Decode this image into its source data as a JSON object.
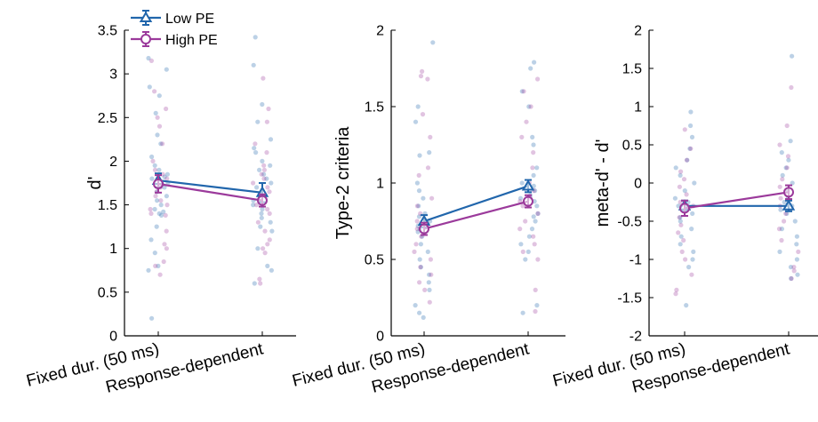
{
  "chart_data": [
    {
      "type": "line",
      "panel": "d-prime",
      "ylabel": "d'",
      "ylim": [
        0,
        3.5
      ],
      "yticks": [
        0,
        0.5,
        1,
        1.5,
        2,
        2.5,
        3,
        3.5
      ],
      "ytick_labels": [
        "0",
        "0.5",
        "1",
        "1.5",
        "2",
        "2.5",
        "3",
        "3.5"
      ],
      "categories": [
        "Fixed dur. (50 ms)",
        "Response-dependent"
      ],
      "legend": {
        "position": "top-left",
        "entries": [
          "Low PE",
          "High PE"
        ]
      },
      "series": [
        {
          "name": "Low PE",
          "color": "#2166ac",
          "marker": "triangle",
          "values": [
            1.78,
            1.64
          ],
          "errors": [
            0.08,
            0.11
          ]
        },
        {
          "name": "High PE",
          "color": "#9b3a9b",
          "marker": "circle",
          "values": [
            1.74,
            1.55
          ],
          "errors": [
            0.1,
            0.07
          ]
        }
      ],
      "scatter": {
        "low": [
          [
            3.18,
            3.05,
            2.85,
            2.75,
            2.55,
            2.3,
            2.2,
            2.05,
            1.95,
            1.9,
            1.85,
            1.82,
            1.8,
            1.75,
            1.7,
            1.65,
            1.6,
            1.55,
            1.5,
            1.45,
            1.42,
            1.4,
            1.38,
            1.25,
            1.1,
            0.95,
            0.8,
            0.75,
            0.2
          ],
          [
            3.42,
            3.1,
            2.65,
            2.45,
            2.25,
            2.15,
            2.1,
            2.0,
            1.95,
            1.9,
            1.85,
            1.8,
            1.75,
            1.7,
            1.6,
            1.55,
            1.5,
            1.45,
            1.4,
            1.35,
            1.3,
            1.25,
            1.2,
            1.0,
            0.8,
            0.75,
            0.6
          ]
        ],
        "high": [
          [
            3.15,
            2.8,
            2.6,
            2.5,
            2.4,
            2.2,
            2.0,
            1.9,
            1.85,
            1.8,
            1.75,
            1.7,
            1.65,
            1.6,
            1.55,
            1.5,
            1.45,
            1.4,
            1.38,
            1.2,
            1.05,
            1.0,
            0.85,
            0.8,
            0.7
          ],
          [
            2.95,
            2.6,
            2.45,
            2.2,
            2.1,
            1.95,
            1.9,
            1.85,
            1.8,
            1.75,
            1.7,
            1.65,
            1.6,
            1.55,
            1.5,
            1.45,
            1.4,
            1.3,
            1.2,
            1.1,
            1.05,
            1.0,
            0.95,
            0.65,
            0.6
          ]
        ]
      }
    },
    {
      "type": "line",
      "panel": "type2-criteria",
      "ylabel": "Type-2 criteria",
      "ylim": [
        0,
        2
      ],
      "yticks": [
        0,
        0.5,
        1,
        1.5,
        2
      ],
      "ytick_labels": [
        "0",
        "0.5",
        "1",
        "1.5",
        "2"
      ],
      "categories": [
        "Fixed dur. (50 ms)",
        "Response-dependent"
      ],
      "series": [
        {
          "name": "Low PE",
          "color": "#2166ac",
          "marker": "triangle",
          "values": [
            0.75,
            0.98
          ],
          "errors": [
            0.04,
            0.04
          ]
        },
        {
          "name": "High PE",
          "color": "#9b3a9b",
          "marker": "circle",
          "values": [
            0.7,
            0.88
          ],
          "errors": [
            0.04,
            0.04
          ]
        }
      ],
      "scatter": {
        "low": [
          [
            1.92,
            1.5,
            1.4,
            1.2,
            1.18,
            1.0,
            0.95,
            0.9,
            0.85,
            0.8,
            0.78,
            0.75,
            0.72,
            0.7,
            0.68,
            0.65,
            0.6,
            0.55,
            0.5,
            0.45,
            0.4,
            0.35,
            0.3,
            0.2,
            0.15,
            0.12
          ],
          [
            1.79,
            1.75,
            1.6,
            1.5,
            1.3,
            1.25,
            1.1,
            1.05,
            1.0,
            0.98,
            0.95,
            0.92,
            0.9,
            0.88,
            0.85,
            0.8,
            0.78,
            0.75,
            0.7,
            0.65,
            0.6,
            0.55,
            0.5,
            0.2,
            0.15
          ]
        ],
        "high": [
          [
            1.73,
            1.7,
            1.68,
            1.45,
            1.3,
            1.1,
            1.05,
            0.9,
            0.85,
            0.8,
            0.75,
            0.7,
            0.65,
            0.6,
            0.55,
            0.5,
            0.45,
            0.4,
            0.35,
            0.3,
            0.22
          ],
          [
            1.68,
            1.6,
            1.5,
            1.4,
            1.3,
            1.2,
            1.1,
            1.0,
            0.95,
            0.9,
            0.88,
            0.85,
            0.8,
            0.75,
            0.7,
            0.65,
            0.6,
            0.55,
            0.5,
            0.3,
            0.16
          ]
        ]
      }
    },
    {
      "type": "line",
      "panel": "meta-d-minus-d",
      "ylabel": "meta-d' - d'",
      "ylim": [
        -2,
        2
      ],
      "yticks": [
        -2,
        -1.5,
        -1,
        -0.5,
        0,
        0.5,
        1,
        1.5,
        2
      ],
      "ytick_labels": [
        "-2",
        "-1.5",
        "-1",
        "-0.5",
        "0",
        "0.5",
        "1",
        "1.5",
        "2"
      ],
      "categories": [
        "Fixed dur. (50 ms)",
        "Response-dependent"
      ],
      "series": [
        {
          "name": "Low PE",
          "color": "#2166ac",
          "marker": "triangle",
          "values": [
            -0.3,
            -0.3
          ],
          "errors": [
            0.07,
            0.07
          ]
        },
        {
          "name": "High PE",
          "color": "#9b3a9b",
          "marker": "circle",
          "values": [
            -0.33,
            -0.12
          ],
          "errors": [
            0.1,
            0.09
          ]
        }
      ],
      "scatter": {
        "low": [
          [
            0.93,
            0.75,
            0.6,
            0.45,
            0.3,
            0.2,
            0.1,
            0.0,
            -0.1,
            -0.2,
            -0.25,
            -0.3,
            -0.35,
            -0.4,
            -0.45,
            -0.5,
            -0.6,
            -0.7,
            -0.8,
            -0.9,
            -1.0,
            -1.1,
            -1.6
          ],
          [
            1.66,
            0.55,
            0.4,
            0.3,
            0.2,
            0.1,
            0.0,
            -0.1,
            -0.2,
            -0.25,
            -0.3,
            -0.35,
            -0.4,
            -0.5,
            -0.6,
            -0.7,
            -0.8,
            -0.9,
            -1.0,
            -1.1,
            -1.2,
            -1.25
          ]
        ],
        "high": [
          [
            0.7,
            0.45,
            0.3,
            0.15,
            0.05,
            -0.05,
            -0.15,
            -0.25,
            -0.3,
            -0.35,
            -0.45,
            -0.55,
            -0.65,
            -0.75,
            -0.9,
            -1.0,
            -1.2,
            -1.4,
            -1.45
          ],
          [
            1.25,
            0.75,
            0.5,
            0.35,
            0.2,
            0.05,
            -0.05,
            -0.1,
            -0.2,
            -0.3,
            -0.4,
            -0.5,
            -0.6,
            -0.75,
            -0.9,
            -1.1,
            -1.15,
            -1.25
          ]
        ]
      }
    }
  ]
}
